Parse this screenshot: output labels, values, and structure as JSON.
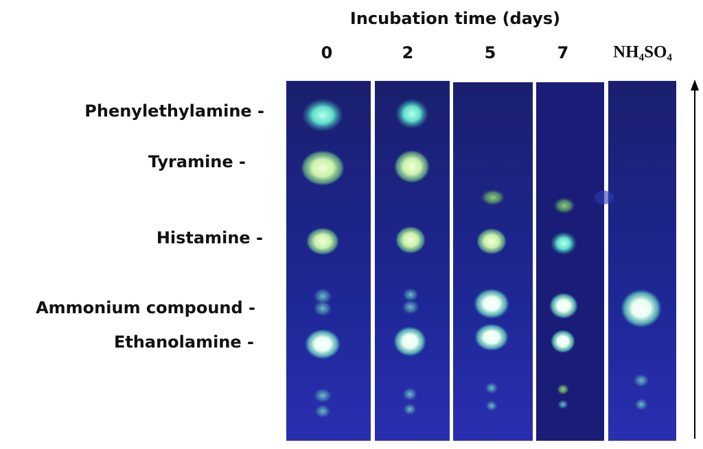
{
  "header": {
    "title": "Incubation time (days)"
  },
  "lanes": [
    "0",
    "2",
    "5",
    "7",
    "NH₄SO₄"
  ],
  "compounds": [
    "Phenylethylamine -",
    "Tyramine -",
    "Histamine -",
    "Ammonium compound -",
    "Ethanolamine -"
  ]
}
